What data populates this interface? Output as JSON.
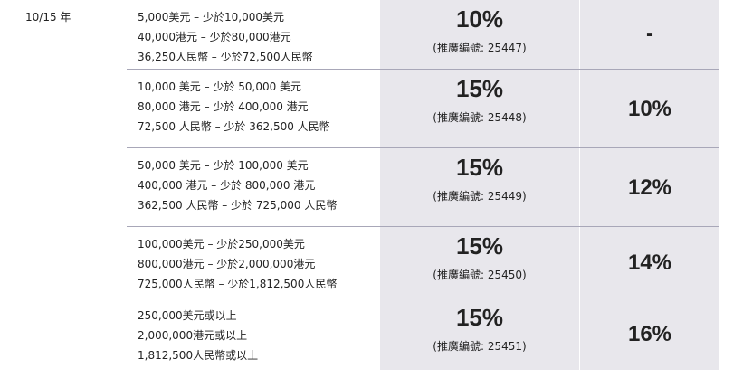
{
  "term": "10/15 年",
  "rows": [
    {
      "tiers": [
        "5,000美元 – 少於10,000美元",
        "40,000港元 – 少於80,000港元",
        "36,250人民幣 – 少於72,500人民幣"
      ],
      "rate": "10%",
      "code": "(推廣編號: 25447)",
      "extra": "-"
    },
    {
      "tiers": [
        "10,000 美元 – 少於 50,000 美元",
        "80,000 港元 – 少於 400,000 港元",
        "72,500 人民幣 – 少於 362,500 人民幣"
      ],
      "rate": "15%",
      "code": "(推廣編號: 25448)",
      "extra": "10%"
    },
    {
      "tiers": [
        "50,000 美元 – 少於 100,000 美元",
        "400,000 港元 – 少於 800,000 港元",
        "362,500 人民幣 – 少於 725,000 人民幣"
      ],
      "rate": "15%",
      "code": "(推廣編號: 25449)",
      "extra": "12%"
    },
    {
      "tiers": [
        "100,000美元 – 少於250,000美元",
        "800,000港元 – 少於2,000,000港元",
        "725,000人民幣 – 少於1,812,500人民幣"
      ],
      "rate": "15%",
      "code": "(推廣編號: 25450)",
      "extra": "14%"
    },
    {
      "tiers": [
        "250,000美元或以上",
        "2,000,000港元或以上",
        "1,812,500人民幣或以上"
      ],
      "rate": "15%",
      "code": "(推廣編號: 25451)",
      "extra": "16%"
    }
  ]
}
